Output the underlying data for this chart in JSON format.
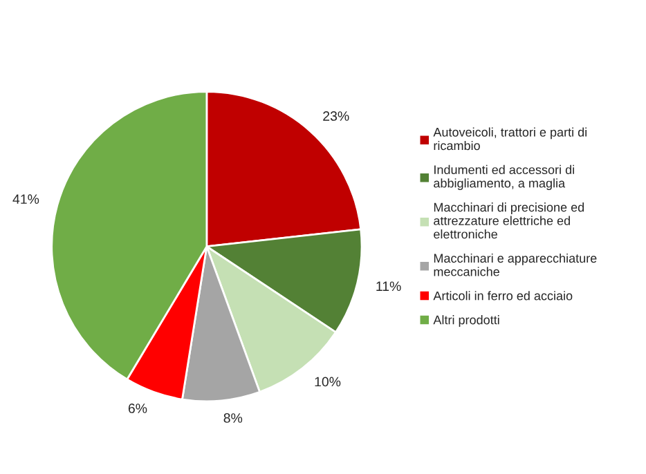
{
  "chart_data": {
    "type": "pie",
    "categories": [
      "Autoveicoli, trattori e parti di ricambio",
      "Indumenti ed accessori di abbigliamento, a maglia",
      "Macchinari di precisione ed attrezzature elettriche ed elettroniche",
      "Macchinari e apparecchiature meccaniche",
      "Articoli in ferro ed acciaio",
      "Altri prodotti"
    ],
    "values": [
      23,
      11,
      10,
      8,
      6,
      41
    ],
    "colors": [
      "#c00000",
      "#538135",
      "#c5e0b4",
      "#a5a5a5",
      "#ff0000",
      "#70ad47"
    ],
    "value_labels": [
      "23%",
      "11%",
      "10%",
      "8%",
      "6%",
      "41%"
    ],
    "legend": "right"
  }
}
